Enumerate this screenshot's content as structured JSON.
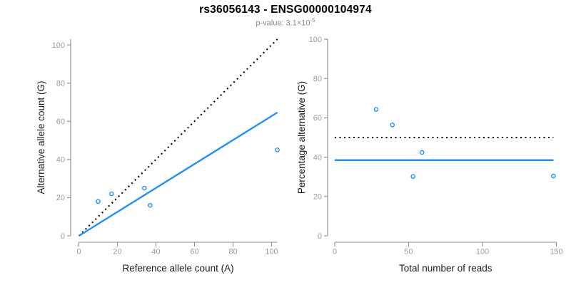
{
  "header": {
    "title": "rs36056143 - ENSG00000104974",
    "subtitle_prefix": "p-value: 3.1×10",
    "subtitle_exponent": "-5"
  },
  "colors": {
    "accent_blue": "#1E90FF",
    "dotted_black": "#000000",
    "axis_gray": "#8A8A8A",
    "tick_label_gray": "#9C9C9C",
    "axis_title_dark": "#1C1C1C",
    "title_black": "#000000",
    "subtitle_gray": "#8A8A8A"
  },
  "chart_data": [
    {
      "type": "scatter",
      "panel": "left",
      "xlabel": "Reference allele count (A)",
      "ylabel": "Alternative allele count (G)",
      "xlim": [
        0,
        103
      ],
      "ylim": [
        0,
        103
      ],
      "xticks": [
        0,
        20,
        40,
        60,
        80,
        100
      ],
      "yticks": [
        0,
        20,
        40,
        60,
        80,
        100
      ],
      "grid": false,
      "points": [
        {
          "x": 10,
          "y": 18
        },
        {
          "x": 17,
          "y": 22
        },
        {
          "x": 34,
          "y": 25
        },
        {
          "x": 37,
          "y": 16
        },
        {
          "x": 103,
          "y": 45
        }
      ],
      "lines": [
        {
          "name": "identity-line",
          "style": "dotted",
          "color": "#000000",
          "x1": 0,
          "y1": 0,
          "x2": 103,
          "y2": 103
        },
        {
          "name": "fit-line",
          "style": "solid",
          "color": "#1E90FF",
          "x1": 0,
          "y1": 0,
          "x2": 103,
          "y2": 64.6
        }
      ]
    },
    {
      "type": "scatter",
      "panel": "right",
      "xlabel": "Total number of reads",
      "ylabel": "Percentage alternative (G)",
      "xlim": [
        0,
        150
      ],
      "ylim": [
        0,
        100
      ],
      "xticks": [
        0,
        50,
        100,
        150
      ],
      "yticks": [
        0,
        20,
        40,
        60,
        80,
        100
      ],
      "grid": false,
      "points": [
        {
          "x": 28,
          "y": 64.3
        },
        {
          "x": 39,
          "y": 56.4
        },
        {
          "x": 59,
          "y": 42.4
        },
        {
          "x": 53,
          "y": 30.2
        },
        {
          "x": 148,
          "y": 30.4
        }
      ],
      "lines": [
        {
          "name": "fifty-percent-line",
          "style": "dotted",
          "color": "#000000",
          "x1": 0,
          "y1": 50,
          "x2": 148,
          "y2": 50
        },
        {
          "name": "mean-percentage-line",
          "style": "solid",
          "color": "#1E90FF",
          "x1": 0,
          "y1": 38.5,
          "x2": 148,
          "y2": 38.5
        }
      ]
    }
  ]
}
